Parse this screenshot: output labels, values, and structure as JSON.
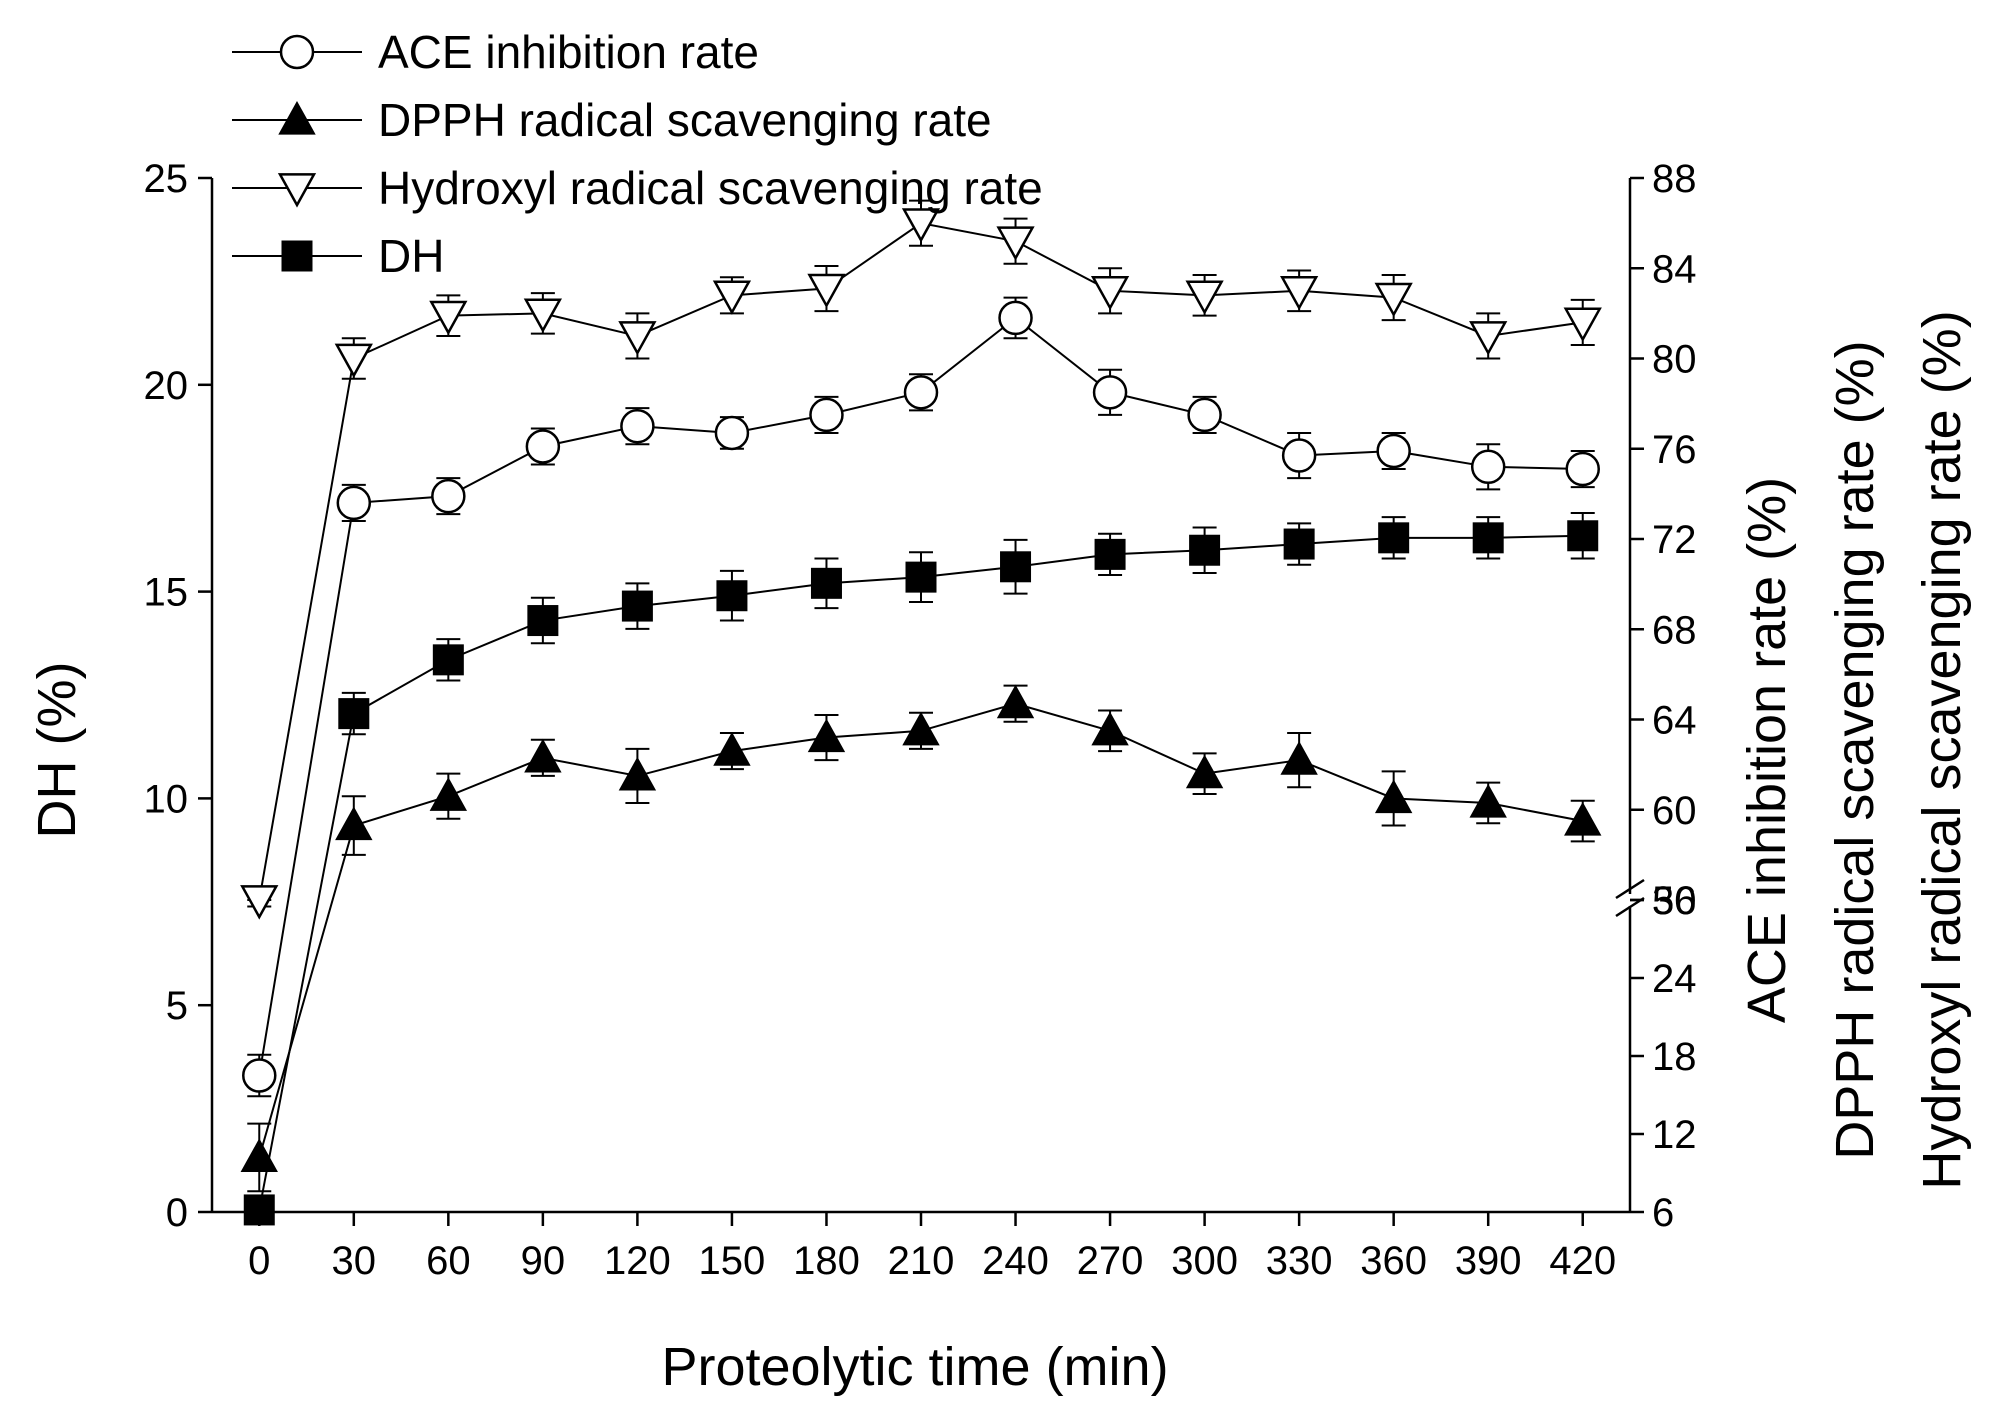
{
  "chart_data": {
    "type": "line",
    "xlabel": "Proteolytic time (min)",
    "ylabel_left": "DH (%)",
    "ylabels_right": [
      "ACE inhibition rate (%)",
      "DPPH radical scavenging rate (%)",
      "Hydroxyl radical scavenging rate (%)"
    ],
    "x": [
      0,
      30,
      60,
      90,
      120,
      150,
      180,
      210,
      240,
      270,
      300,
      330,
      360,
      390,
      420
    ],
    "x_ticks": [
      "0",
      "30",
      "60",
      "90",
      "120",
      "150",
      "180",
      "210",
      "240",
      "270",
      "300",
      "330",
      "360",
      "390",
      "420"
    ],
    "xlim": [
      -15,
      435
    ],
    "left_axis": {
      "ylim": [
        0,
        25
      ],
      "ticks": [
        "0",
        "5",
        "10",
        "15",
        "20",
        "25"
      ]
    },
    "right_axis": {
      "broken": true,
      "lower_segment": [
        6,
        30
      ],
      "upper_segment": [
        56,
        88
      ],
      "lower_ticks": [
        "6",
        "12",
        "18",
        "24",
        "30"
      ],
      "upper_ticks": [
        "56",
        "60",
        "64",
        "68",
        "72",
        "76",
        "80",
        "84",
        "88"
      ]
    },
    "series": [
      {
        "name": "ACE inhibition rate",
        "axis": "right",
        "marker": "circle-open",
        "values": [
          16.5,
          73.6,
          73.9,
          76.1,
          77.0,
          76.7,
          77.5,
          78.5,
          81.8,
          78.5,
          77.5,
          75.7,
          75.9,
          75.2,
          75.1
        ],
        "errors": [
          1.6,
          0.8,
          0.8,
          0.8,
          0.8,
          0.7,
          0.8,
          0.8,
          0.9,
          1.0,
          0.8,
          1.0,
          0.8,
          1.0,
          0.8
        ]
      },
      {
        "name": "DPPH radical scavenging rate",
        "axis": "right",
        "marker": "triangle-up-filled",
        "values": [
          10.2,
          59.3,
          60.6,
          62.3,
          61.5,
          62.6,
          63.2,
          63.5,
          64.7,
          63.5,
          61.6,
          62.2,
          60.5,
          60.3,
          59.5
        ],
        "errors": [
          2.6,
          1.3,
          1.0,
          0.8,
          1.2,
          0.8,
          1.0,
          0.8,
          0.8,
          0.9,
          0.9,
          1.2,
          1.2,
          0.9,
          0.9
        ]
      },
      {
        "name": "Hydroxyl radical scavenging rate",
        "axis": "right",
        "marker": "triangle-down-open",
        "values": [
          31.0,
          80.0,
          81.9,
          82.0,
          81.0,
          82.8,
          83.1,
          86.0,
          85.2,
          83.0,
          82.8,
          83.0,
          82.7,
          81.0,
          81.6
        ],
        "errors": [
          1.5,
          0.9,
          0.9,
          0.9,
          1.0,
          0.8,
          1.0,
          1.0,
          1.0,
          1.0,
          0.9,
          0.9,
          1.0,
          1.0,
          1.0
        ]
      },
      {
        "name": "DH",
        "axis": "left",
        "marker": "square-filled",
        "values": [
          0.05,
          12.05,
          13.35,
          14.3,
          14.65,
          14.9,
          15.2,
          15.35,
          15.6,
          15.9,
          16.0,
          16.15,
          16.3,
          16.3,
          16.35
        ],
        "errors": [
          0.3,
          0.5,
          0.5,
          0.55,
          0.55,
          0.6,
          0.6,
          0.6,
          0.65,
          0.5,
          0.55,
          0.5,
          0.5,
          0.5,
          0.55
        ]
      }
    ],
    "legend": {
      "placement": "top-left",
      "entries": [
        "ACE inhibition rate",
        "DPPH radical scavenging rate",
        "Hydroxyl radical scavenging rate",
        "DH"
      ]
    },
    "grid": false
  }
}
